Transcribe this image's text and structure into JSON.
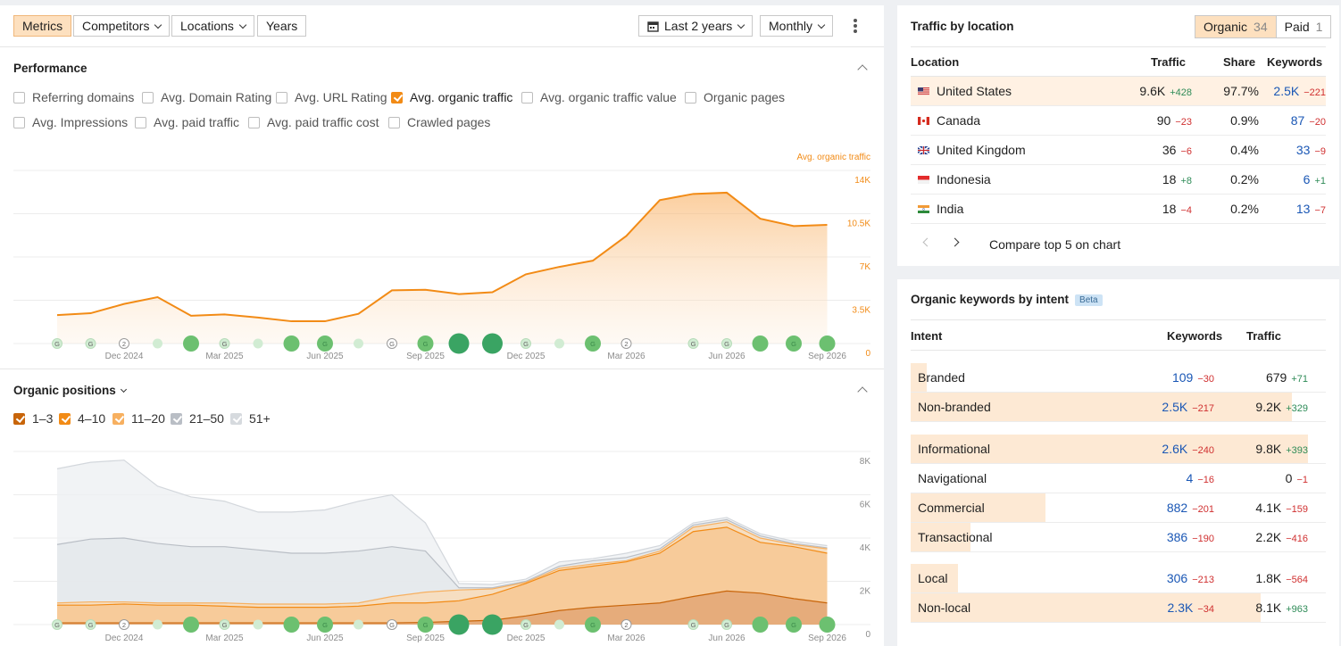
{
  "toolbar": {
    "tabs": [
      "Metrics",
      "Competitors",
      "Locations",
      "Years"
    ],
    "range_label": "Last 2 years",
    "interval_label": "Monthly"
  },
  "performance": {
    "title": "Performance",
    "metrics": [
      {
        "label": "Referring domains",
        "checked": false
      },
      {
        "label": "Avg. Domain Rating",
        "checked": false
      },
      {
        "label": "Avg. URL Rating",
        "checked": false
      },
      {
        "label": "Avg. organic traffic",
        "checked": true
      },
      {
        "label": "Avg. organic traffic value",
        "checked": false
      },
      {
        "label": "Organic pages",
        "checked": false
      },
      {
        "label": "Avg. Impressions",
        "checked": false
      },
      {
        "label": "Avg. paid traffic",
        "checked": false
      },
      {
        "label": "Avg. paid traffic cost",
        "checked": false
      },
      {
        "label": "Crawled pages",
        "checked": false
      }
    ]
  },
  "organic_positions": {
    "title": "Organic positions",
    "legend": [
      {
        "label": "1–3",
        "color": "#c8650a"
      },
      {
        "label": "4–10",
        "color": "#f28b16"
      },
      {
        "label": "11–20",
        "color": "#f7b060"
      },
      {
        "label": "21–50",
        "color": "#b9bec5"
      },
      {
        "label": "51+",
        "color": "#d6dade"
      }
    ]
  },
  "chart_data": [
    {
      "type": "area",
      "series_label": "Avg. organic traffic",
      "color": "#f28b16",
      "ylim": [
        0,
        14000
      ],
      "yticks": [
        "14K",
        "10.5K",
        "7K",
        "3.5K",
        "0"
      ],
      "x": [
        "Oct 2024",
        "Nov 2024",
        "Dec 2024",
        "Jan 2025",
        "Feb 2025",
        "Mar 2025",
        "Apr 2025",
        "May 2025",
        "Jun 2025",
        "Jul 2025",
        "Aug 2025",
        "Sep 2025",
        "Oct 2025",
        "Nov 2025",
        "Dec 2025",
        "Jan 2026",
        "Feb 2026",
        "Mar 2026",
        "Apr 2026",
        "May 2026",
        "Jun 2026",
        "Jul 2026",
        "Aug 2026",
        "Sep 2026"
      ],
      "xticks": [
        "Dec 2024",
        "Mar 2025",
        "Jun 2025",
        "Sep 2025",
        "Dec 2025",
        "Mar 2026",
        "Jun 2026",
        "Sep 2026"
      ],
      "values": [
        2300,
        2450,
        3200,
        3750,
        2250,
        2350,
        2100,
        1800,
        1800,
        2400,
        4300,
        4350,
        4000,
        4150,
        5600,
        6200,
        6700,
        8700,
        11600,
        12100,
        12200,
        10100,
        9500,
        9600
      ],
      "markers": [
        {
          "label": "G",
          "size": 1
        },
        {
          "label": "G",
          "size": 1
        },
        {
          "label": "2",
          "size": 1
        },
        {
          "label": "",
          "size": 1
        },
        {
          "label": "",
          "size": 3
        },
        {
          "label": "G",
          "size": 1
        },
        {
          "label": "",
          "size": 1
        },
        {
          "label": "",
          "size": 3
        },
        {
          "label": "G",
          "size": 3
        },
        {
          "label": "",
          "size": 1
        },
        {
          "label": "G",
          "size": 1
        },
        {
          "label": "G",
          "size": 3
        },
        {
          "label": "",
          "size": 5
        },
        {
          "label": "",
          "size": 5
        },
        {
          "label": "G",
          "size": 1
        },
        {
          "label": "",
          "size": 1
        },
        {
          "label": "G",
          "size": 3
        },
        {
          "label": "2",
          "size": 1
        },
        {
          "label": "",
          "size": 0
        },
        {
          "label": "G",
          "size": 1
        },
        {
          "label": "G",
          "size": 1
        },
        {
          "label": "",
          "size": 3
        },
        {
          "label": "G",
          "size": 3
        },
        {
          "label": "",
          "size": 3
        }
      ]
    },
    {
      "type": "area",
      "ylim": [
        0,
        8000
      ],
      "yticks": [
        "8K",
        "6K",
        "4K",
        "2K",
        "0"
      ],
      "xticks": [
        "Dec 2024",
        "Mar 2025",
        "Jun 2025",
        "Sep 2025",
        "Dec 2025",
        "Mar 2026",
        "Jun 2026",
        "Sep 2026"
      ],
      "series": [
        {
          "name": "1–3",
          "values": [
            80,
            80,
            80,
            80,
            80,
            80,
            80,
            80,
            80,
            80,
            80,
            100,
            150,
            200,
            400,
            650,
            800,
            900,
            1000,
            1300,
            1550,
            1450,
            1200,
            1000
          ]
        },
        {
          "name": "4–10",
          "values": [
            900,
            900,
            950,
            900,
            900,
            850,
            800,
            800,
            800,
            850,
            1000,
            1000,
            1100,
            1400,
            1900,
            2500,
            2700,
            2900,
            3300,
            4300,
            4500,
            3800,
            3600,
            3300
          ]
        },
        {
          "name": "11–20",
          "values": [
            1000,
            1050,
            1050,
            1000,
            1000,
            1000,
            950,
            950,
            950,
            1000,
            1300,
            1500,
            1600,
            1650,
            1950,
            2600,
            2800,
            2950,
            3400,
            4500,
            4750,
            4000,
            3700,
            3500
          ]
        },
        {
          "name": "21–50",
          "values": [
            3700,
            3950,
            4000,
            3750,
            3600,
            3600,
            3450,
            3300,
            3300,
            3400,
            3600,
            3400,
            1700,
            1700,
            2000,
            2700,
            2950,
            3100,
            3500,
            4600,
            4850,
            4100,
            3750,
            3550
          ]
        },
        {
          "name": "51+",
          "values": [
            7200,
            7500,
            7600,
            6400,
            5900,
            5700,
            5200,
            5200,
            5300,
            5700,
            6000,
            4700,
            1900,
            1850,
            2100,
            2900,
            3050,
            3300,
            3650,
            4700,
            4950,
            4200,
            3850,
            3650
          ]
        }
      ]
    }
  ],
  "traffic_by_location": {
    "title": "Traffic by location",
    "tabs": [
      {
        "label": "Organic",
        "count": "34"
      },
      {
        "label": "Paid",
        "count": "1"
      }
    ],
    "headers": [
      "Location",
      "Traffic",
      "Share",
      "Keywords"
    ],
    "rows": [
      {
        "flag": "us",
        "name": "United States",
        "traffic": "9.6K",
        "traffic_delta": "+428",
        "share": "97.7%",
        "keywords": "2.5K",
        "kw_delta": "−221"
      },
      {
        "flag": "ca",
        "name": "Canada",
        "traffic": "90",
        "traffic_delta": "−23",
        "share": "0.9%",
        "keywords": "87",
        "kw_delta": "−20"
      },
      {
        "flag": "gb",
        "name": "United Kingdom",
        "traffic": "36",
        "traffic_delta": "−6",
        "share": "0.4%",
        "keywords": "33",
        "kw_delta": "−9"
      },
      {
        "flag": "id",
        "name": "Indonesia",
        "traffic": "18",
        "traffic_delta": "+8",
        "share": "0.2%",
        "keywords": "6",
        "kw_delta": "+1"
      },
      {
        "flag": "in",
        "name": "India",
        "traffic": "18",
        "traffic_delta": "−4",
        "share": "0.2%",
        "keywords": "13",
        "kw_delta": "−7"
      }
    ],
    "compare_label": "Compare top 5 on chart"
  },
  "keywords_by_intent": {
    "title": "Organic keywords by intent",
    "badge": "Beta",
    "headers": [
      "Intent",
      "Keywords",
      "Traffic"
    ],
    "groups": [
      [
        {
          "name": "Branded",
          "keywords": "109",
          "kw_delta": "−30",
          "traffic": "679",
          "tr_delta": "+71",
          "share": 0.04
        },
        {
          "name": "Non-branded",
          "keywords": "2.5K",
          "kw_delta": "−217",
          "traffic": "9.2K",
          "tr_delta": "+329",
          "share": 0.96
        }
      ],
      [
        {
          "name": "Informational",
          "keywords": "2.6K",
          "kw_delta": "−240",
          "traffic": "9.8K",
          "tr_delta": "+393",
          "share": 1.0
        },
        {
          "name": "Navigational",
          "keywords": "4",
          "kw_delta": "−16",
          "traffic": "0",
          "tr_delta": "−1",
          "share": 0.0
        },
        {
          "name": "Commercial",
          "keywords": "882",
          "kw_delta": "−201",
          "traffic": "4.1K",
          "tr_delta": "−159",
          "share": 0.34
        },
        {
          "name": "Transactional",
          "keywords": "386",
          "kw_delta": "−190",
          "traffic": "2.2K",
          "tr_delta": "−416",
          "share": 0.15
        }
      ],
      [
        {
          "name": "Local",
          "keywords": "306",
          "kw_delta": "−213",
          "traffic": "1.8K",
          "tr_delta": "−564",
          "share": 0.12
        },
        {
          "name": "Non-local",
          "keywords": "2.3K",
          "kw_delta": "−34",
          "traffic": "8.1K",
          "tr_delta": "+963",
          "share": 0.88
        }
      ]
    ]
  }
}
